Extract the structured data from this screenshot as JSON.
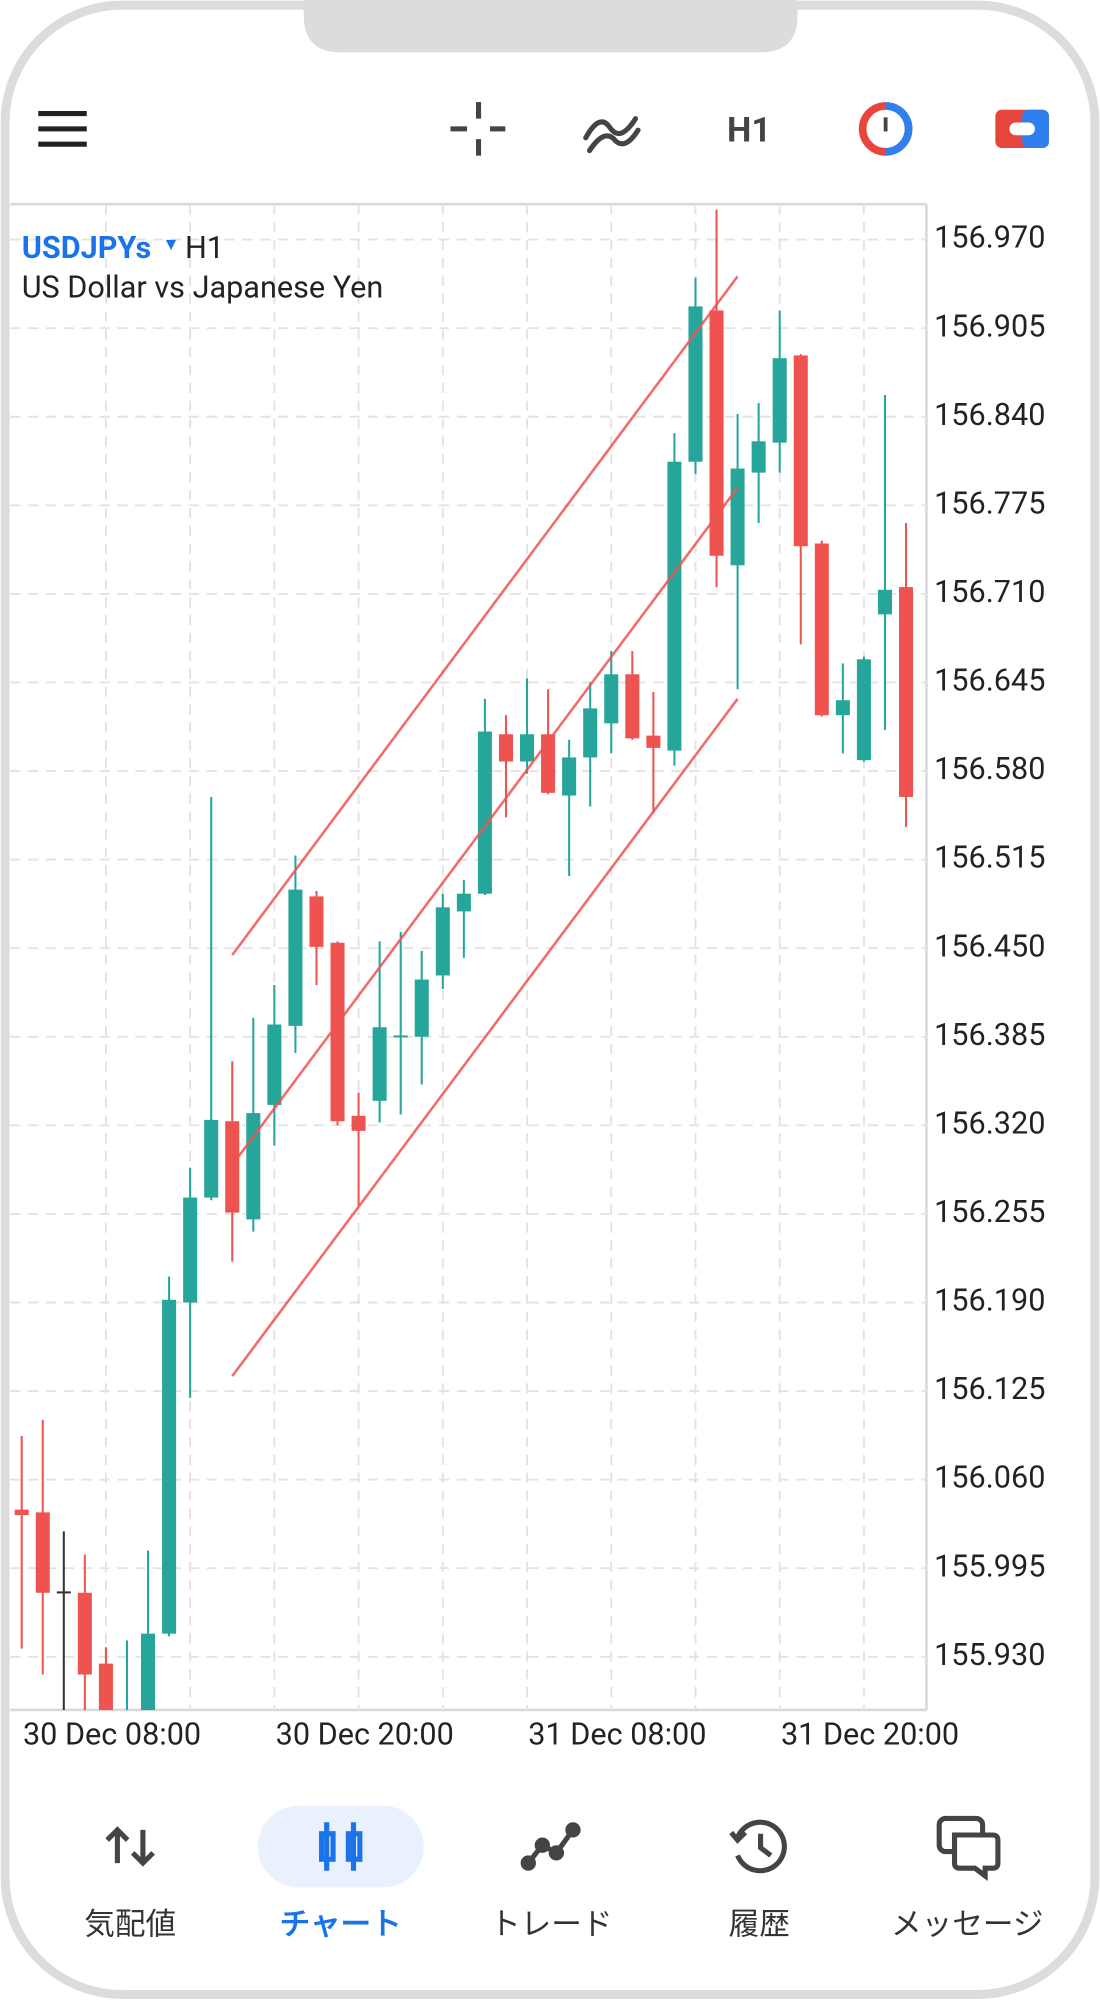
{
  "toolbar": {
    "timeframe": "H1"
  },
  "chart_data": {
    "type": "candlestick",
    "symbol": "USDJPYs",
    "timeframe": "H1",
    "description": "US Dollar vs Japanese Yen",
    "up_color": "#26a69a",
    "down_color": "#ef5350",
    "categories": [
      "30 Dec 08:00",
      null,
      null,
      null,
      null,
      null,
      null,
      null,
      null,
      null,
      null,
      null,
      "30 Dec 20:00",
      null,
      null,
      null,
      null,
      null,
      null,
      null,
      null,
      null,
      null,
      null,
      "31 Dec 08:00",
      null,
      null,
      null,
      null,
      null,
      null,
      null,
      null,
      null,
      null,
      null,
      "31 Dec 20:00",
      null,
      null,
      null,
      null,
      null,
      null
    ],
    "open": [
      156.038,
      156.036,
      155.978,
      155.977,
      155.925,
      155.86,
      155.87,
      155.947,
      156.19,
      156.267,
      156.323,
      156.251,
      156.335,
      156.393,
      156.488,
      156.454,
      156.327,
      156.338,
      156.385,
      156.385,
      156.43,
      156.477,
      156.49,
      156.607,
      156.587,
      156.607,
      156.562,
      156.59,
      156.615,
      156.651,
      156.606,
      156.595,
      156.807,
      156.918,
      156.731,
      156.799,
      156.821,
      156.885,
      156.747,
      156.621,
      156.588,
      156.695,
      156.715
    ],
    "high": [
      156.092,
      156.104,
      156.022,
      156.005,
      155.937,
      155.942,
      156.008,
      156.209,
      156.289,
      156.561,
      156.367,
      156.399,
      156.423,
      156.518,
      156.492,
      156.455,
      156.344,
      156.455,
      156.462,
      156.448,
      156.49,
      156.5,
      156.633,
      156.621,
      156.648,
      156.64,
      156.603,
      156.645,
      156.668,
      156.668,
      156.638,
      156.828,
      156.942,
      156.992,
      156.842,
      156.85,
      156.918,
      156.886,
      156.749,
      156.659,
      156.664,
      156.856,
      156.762
    ],
    "low": [
      155.936,
      155.917,
      155.88,
      155.885,
      155.86,
      155.85,
      155.86,
      155.945,
      156.12,
      156.265,
      156.22,
      156.242,
      156.305,
      156.373,
      156.423,
      156.32,
      156.261,
      156.322,
      156.328,
      156.35,
      156.42,
      156.443,
      156.489,
      156.546,
      156.578,
      156.563,
      156.503,
      156.554,
      156.593,
      156.603,
      156.549,
      156.584,
      156.798,
      156.715,
      156.64,
      156.762,
      156.799,
      156.673,
      156.62,
      156.593,
      156.587,
      156.61,
      156.539
    ],
    "close": [
      156.034,
      155.977,
      155.978,
      155.917,
      155.87,
      155.88,
      155.947,
      156.192,
      156.267,
      156.324,
      156.256,
      156.329,
      156.394,
      156.493,
      156.451,
      156.323,
      156.316,
      156.392,
      156.386,
      156.427,
      156.48,
      156.49,
      156.609,
      156.587,
      156.607,
      156.564,
      156.59,
      156.626,
      156.651,
      156.604,
      156.597,
      156.807,
      156.921,
      156.738,
      156.802,
      156.822,
      156.883,
      156.745,
      156.621,
      156.632,
      156.662,
      156.713,
      156.561
    ],
    "channel": {
      "color": "#ef5350",
      "x": [
        10,
        34
      ],
      "lines": [
        [
          156.445,
          156.943
        ],
        [
          156.291,
          156.788
        ],
        [
          156.136,
          156.633
        ]
      ]
    },
    "ylim": [
      155.891,
      156.996
    ],
    "yticks": [
      {
        "value": 156.97,
        "label": "156.970"
      },
      156.905,
      {
        "value": 156.84,
        "label": "156.840"
      },
      156.775,
      {
        "value": 156.71,
        "label": "156.710"
      },
      156.645,
      {
        "value": 156.58,
        "label": "156.580"
      },
      156.515,
      {
        "value": 156.45,
        "label": "156.450"
      },
      156.385,
      {
        "value": 156.32,
        "label": "156.320"
      },
      156.255,
      {
        "value": 156.19,
        "label": "156.190"
      },
      156.125,
      {
        "value": 156.06,
        "label": "156.060"
      },
      155.995,
      {
        "value": 155.93,
        "label": "155.930"
      }
    ],
    "grid": true
  },
  "nav": {
    "items": [
      "気配値",
      "チャート",
      "トレード",
      "履歴",
      "メッセージ"
    ]
  }
}
